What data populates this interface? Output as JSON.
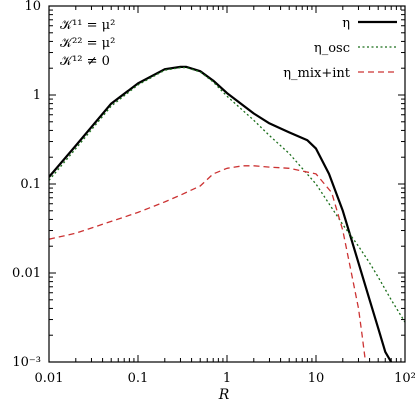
{
  "chart_data": {
    "type": "line",
    "title": "",
    "xlabel": "R",
    "ylabel": "",
    "xscale": "log",
    "yscale": "log",
    "xlim": [
      0.01,
      100
    ],
    "ylim": [
      0.001,
      10
    ],
    "grid": false,
    "legend_position": "top-right",
    "x_tick_labels": [
      "0.01",
      "0.1",
      "1",
      "10",
      "10²"
    ],
    "x_tick_values": [
      0.01,
      0.1,
      1,
      10,
      100
    ],
    "y_tick_labels": [
      "10⁻³",
      "0.01",
      "0.1",
      "1",
      "10"
    ],
    "y_tick_values": [
      0.001,
      0.01,
      0.1,
      1,
      10
    ],
    "annotations": [
      "𝒦¹¹ = μ²",
      "𝒦²² = μ²",
      "𝒦¹² ≠ 0"
    ],
    "series": [
      {
        "name": "η",
        "style": "solid",
        "color": "#000000",
        "x": [
          0.01,
          0.02,
          0.05,
          0.1,
          0.2,
          0.3,
          0.35,
          0.5,
          0.7,
          1,
          2,
          3,
          5,
          8,
          10,
          14,
          20,
          30,
          40,
          50,
          60,
          70
        ],
        "y": [
          0.12,
          0.27,
          0.8,
          1.35,
          1.95,
          2.07,
          2.07,
          1.85,
          1.45,
          1.05,
          0.62,
          0.48,
          0.38,
          0.31,
          0.25,
          0.13,
          0.05,
          0.013,
          0.005,
          0.0024,
          0.0013,
          0.001
        ]
      },
      {
        "name": "η_osc",
        "style": "dotted",
        "color": "#1a6e1a",
        "x": [
          0.01,
          0.02,
          0.05,
          0.1,
          0.2,
          0.3,
          0.35,
          0.5,
          0.7,
          1,
          2,
          3,
          5,
          10,
          20,
          30,
          40,
          50,
          70,
          100
        ],
        "y": [
          0.11,
          0.25,
          0.75,
          1.3,
          1.9,
          2.03,
          2.03,
          1.82,
          1.4,
          0.97,
          0.52,
          0.35,
          0.22,
          0.1,
          0.035,
          0.02,
          0.013,
          0.009,
          0.005,
          0.0028
        ]
      },
      {
        "name": "η_mix+int",
        "style": "dashed",
        "color": "#cc3333",
        "x": [
          0.01,
          0.02,
          0.05,
          0.1,
          0.2,
          0.3,
          0.5,
          0.7,
          1,
          1.5,
          2,
          3,
          5,
          10,
          15,
          20,
          25,
          30,
          33,
          36
        ],
        "y": [
          0.024,
          0.028,
          0.038,
          0.048,
          0.063,
          0.075,
          0.095,
          0.13,
          0.15,
          0.16,
          0.16,
          0.155,
          0.15,
          0.13,
          0.08,
          0.03,
          0.01,
          0.004,
          0.002,
          0.001
        ]
      }
    ]
  }
}
